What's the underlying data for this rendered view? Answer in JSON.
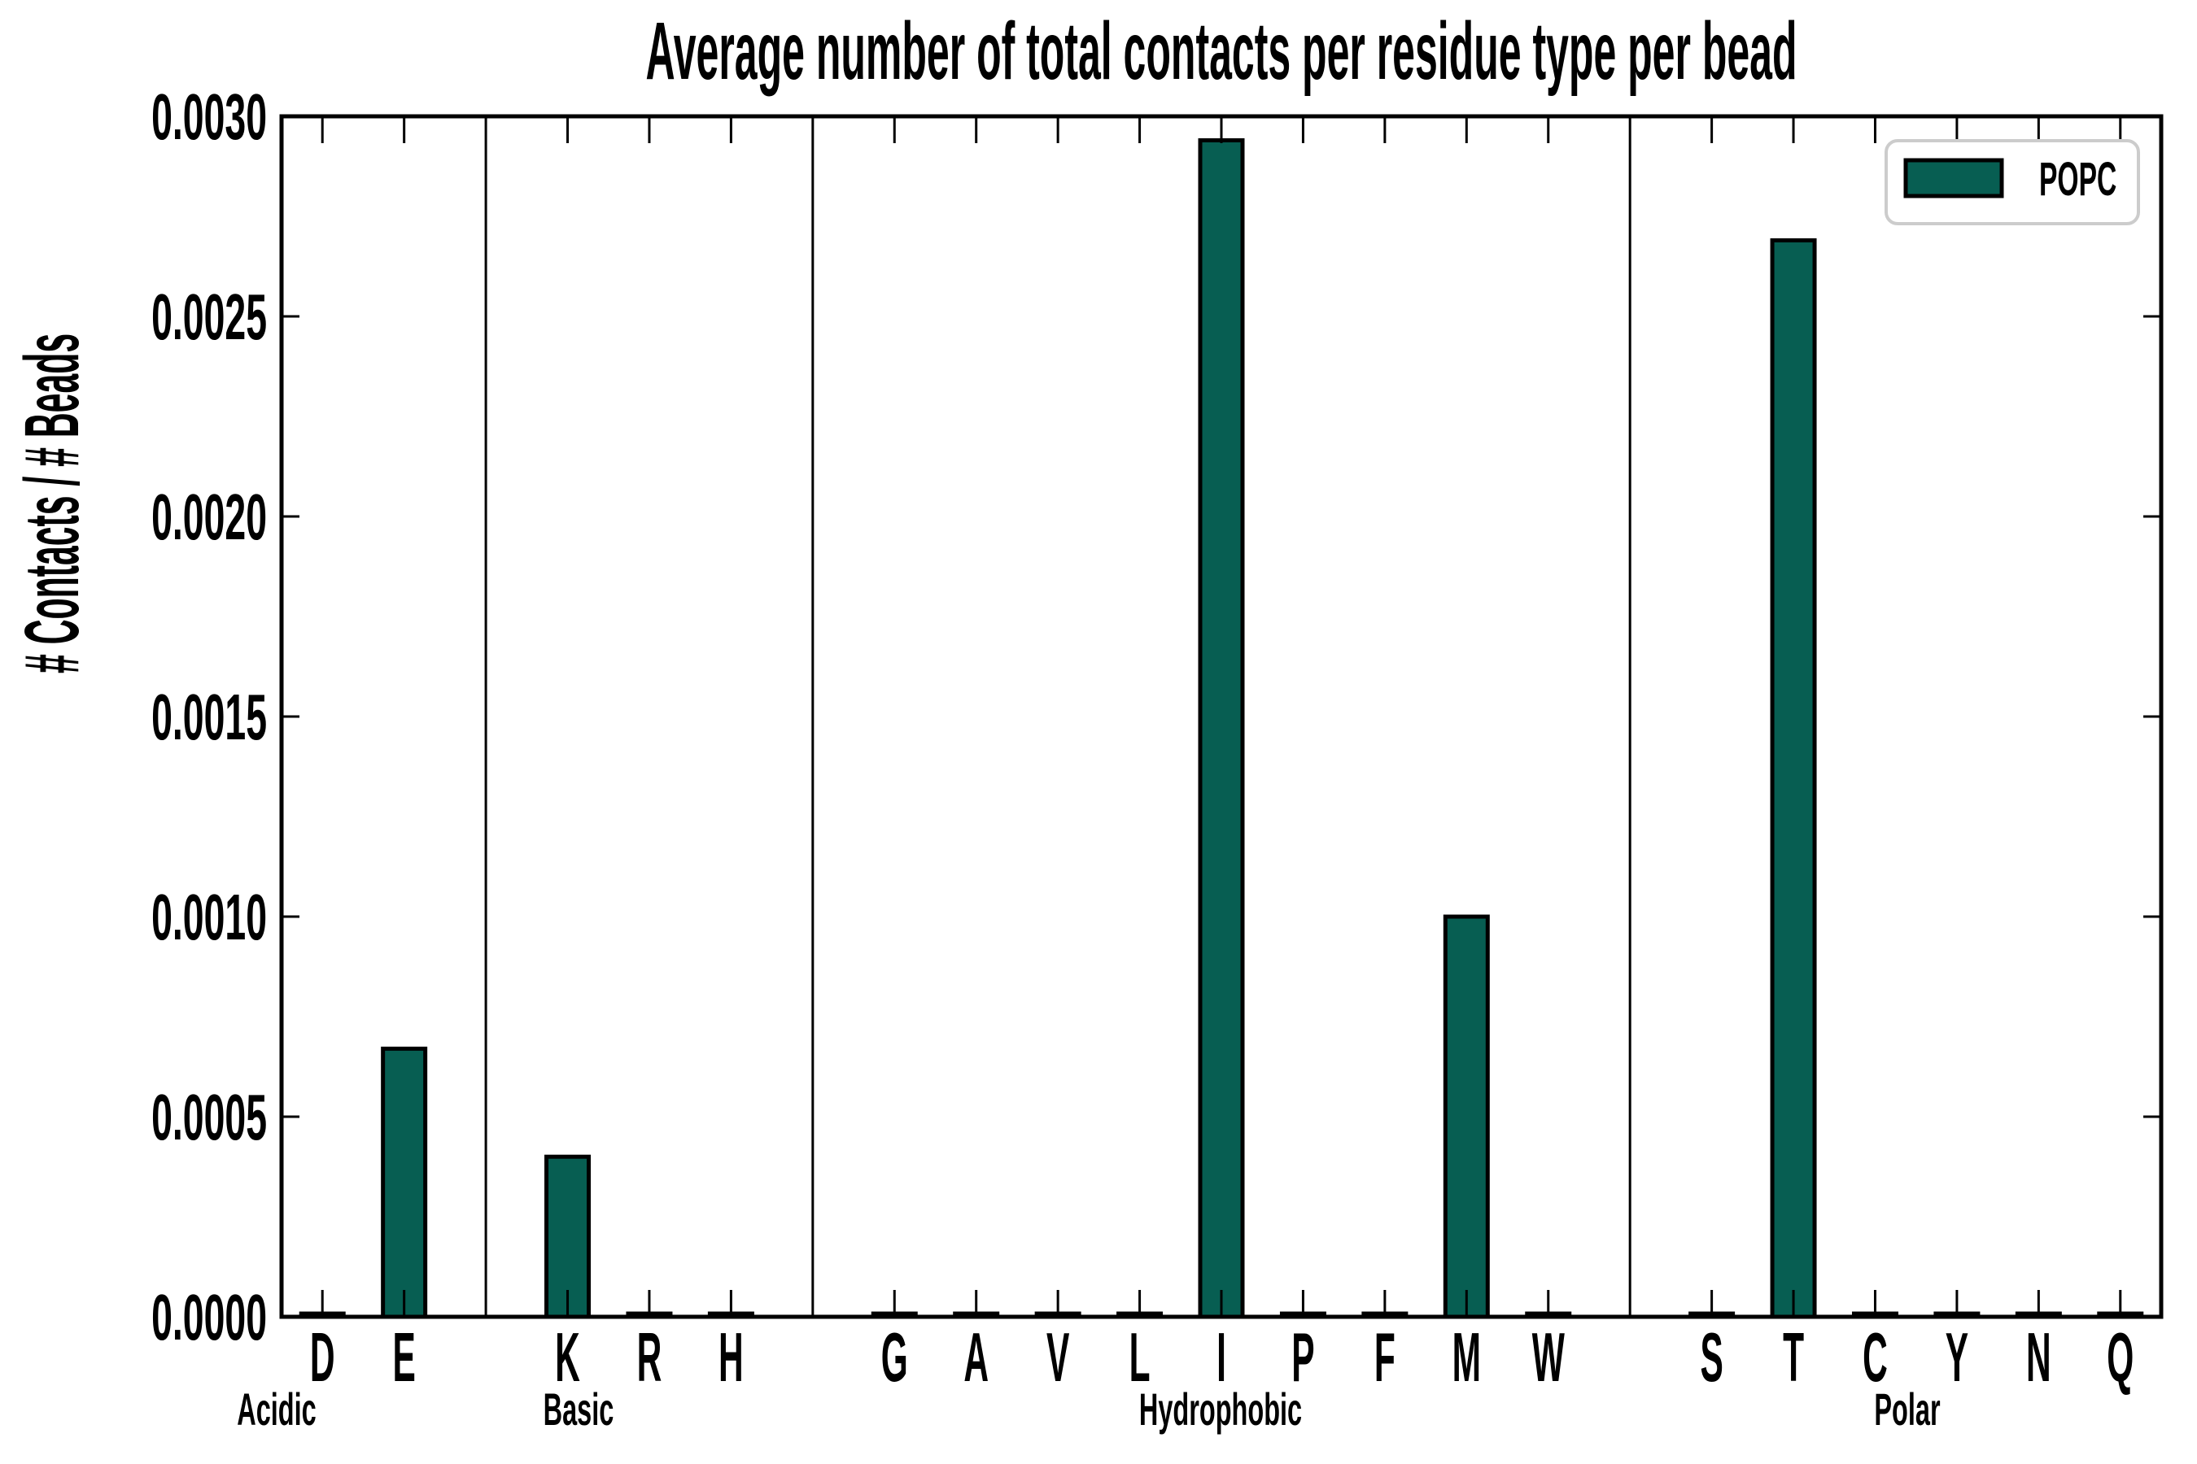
{
  "chart_data": {
    "type": "bar",
    "title": "Average number of total contacts per residue type per bead",
    "ylabel": "# Contacts / # Beads",
    "ylim": [
      0,
      0.003
    ],
    "ytick_values": [
      0.0,
      0.0005,
      0.001,
      0.0015,
      0.002,
      0.0025,
      0.003
    ],
    "ytick_labels": [
      "0.0000",
      "0.0005",
      "0.0010",
      "0.0015",
      "0.0020",
      "0.0025",
      "0.0030"
    ],
    "categories": [
      "D",
      "E",
      "K",
      "R",
      "H",
      "G",
      "A",
      "V",
      "L",
      "I",
      "P",
      "F",
      "M",
      "W",
      "S",
      "T",
      "C",
      "Y",
      "N",
      "Q"
    ],
    "values": [
      8e-06,
      0.00067,
      0.0004,
      8e-06,
      8e-06,
      8e-06,
      8e-06,
      8e-06,
      8e-06,
      0.00294,
      8e-06,
      8e-06,
      0.001,
      8e-06,
      8e-06,
      0.00269,
      8e-06,
      8e-06,
      8e-06,
      8e-06
    ],
    "groups": [
      {
        "name": "Acidic",
        "residues": [
          "D",
          "E"
        ]
      },
      {
        "name": "Basic",
        "residues": [
          "K",
          "R",
          "H"
        ]
      },
      {
        "name": "Hydrophobic",
        "residues": [
          "G",
          "A",
          "V",
          "L",
          "I",
          "P",
          "F",
          "M",
          "W"
        ]
      },
      {
        "name": "Polar",
        "residues": [
          "S",
          "T",
          "C",
          "Y",
          "N",
          "Q"
        ]
      }
    ],
    "legend": {
      "label": "POPC",
      "position": "upper-right"
    },
    "colors": {
      "bar_fill": "#075e52",
      "bar_edge": "#000000",
      "axis": "#000000",
      "legend_border": "#cccccc",
      "background": "#ffffff"
    },
    "grid": "off",
    "legend_entries": [
      "POPC"
    ]
  }
}
